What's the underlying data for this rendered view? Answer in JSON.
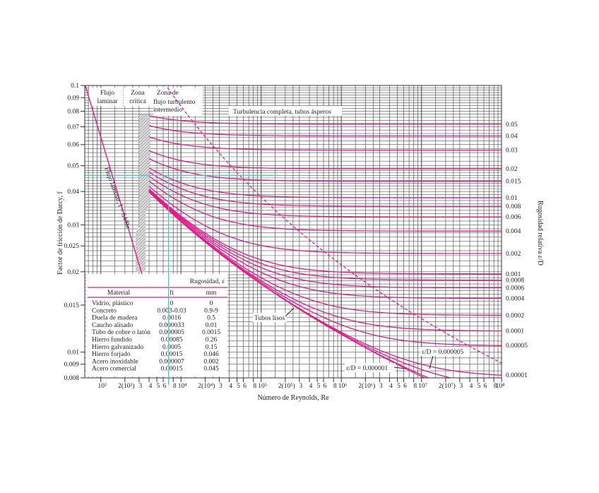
{
  "chart_data": {
    "type": "line",
    "xlabel": "Número de Reynolds, Re",
    "ylabel": "Factor de fricción de Darcy, f",
    "ylabel_right": "Rugosidad relativa ε/D",
    "x_scale": "log",
    "y_scale": "log",
    "xlim": [
      630,
      100000000
    ],
    "ylim": [
      0.008,
      0.1
    ],
    "grid": true,
    "x_tick_labels": [
      "10³",
      "2(10³)",
      "3",
      "4",
      "5",
      "6",
      "8",
      "10⁴",
      "2(10⁴)",
      "3",
      "4",
      "5",
      "6",
      "8",
      "10⁵",
      "2(10⁵)",
      "3",
      "4",
      "5",
      "6",
      "8",
      "10⁶",
      "2(10⁶)",
      "3",
      "4",
      "5",
      "6",
      "8",
      "10⁷",
      "2(10⁷)",
      "3",
      "4",
      "5",
      "6",
      "8",
      "10⁸"
    ],
    "x_tick_values": [
      1000,
      2000,
      3000,
      4000,
      5000,
      6000,
      8000,
      10000,
      20000,
      30000,
      40000,
      50000,
      60000,
      80000,
      100000,
      200000,
      300000,
      400000,
      500000,
      600000,
      800000,
      1000000,
      2000000,
      3000000,
      4000000,
      5000000,
      6000000,
      8000000,
      10000000,
      20000000,
      30000000,
      40000000,
      50000000,
      60000000,
      80000000,
      100000000
    ],
    "y_ticks": [
      {
        "label": "0.1",
        "value": 0.1
      },
      {
        "label": "0.09",
        "value": 0.09
      },
      {
        "label": "0.08",
        "value": 0.08
      },
      {
        "label": "0.07",
        "value": 0.07
      },
      {
        "label": "0.06",
        "value": 0.06
      },
      {
        "label": "0.05",
        "value": 0.05
      },
      {
        "label": "0.04",
        "value": 0.04
      },
      {
        "label": "0.03",
        "value": 0.03
      },
      {
        "label": "0.025",
        "value": 0.025
      },
      {
        "label": "0.02",
        "value": 0.02
      },
      {
        "label": "0.015",
        "value": 0.015
      },
      {
        "label": "0.01",
        "value": 0.01
      },
      {
        "label": "0.009",
        "value": 0.009
      },
      {
        "label": "0.008",
        "value": 0.008
      }
    ],
    "relative_roughness_labels": [
      "0.05",
      "0.04",
      "0.03",
      "0.02",
      "0.015",
      "0.01",
      "0.008",
      "0.006",
      "0.004",
      "0.002",
      "0.001",
      "0.0008",
      "0.0006",
      "0.0004",
      "0.0002",
      "0.0001",
      "0.00005",
      "0.00001"
    ],
    "relative_roughness_curves": [
      0.05,
      0.04,
      0.03,
      0.02,
      0.015,
      0.01,
      0.008,
      0.006,
      0.004,
      0.002,
      0.001,
      0.0008,
      0.0006,
      0.0004,
      0.0002,
      0.0001,
      5e-05,
      1e-05,
      5e-06,
      1e-06,
      0
    ],
    "turbulent_re_range": [
      4000,
      100000000
    ],
    "laminar": {
      "formula": "f = 64/Re",
      "re_range": [
        630,
        3400
      ]
    },
    "highlight": {
      "re": 7000,
      "f": 0.046,
      "color": "#3cc8c8"
    },
    "colors": {
      "curves": "#e8188c",
      "grid": "#555555",
      "highlight": "#3cc8c8"
    },
    "annotations": {
      "laminar_zone": "Flujo laminar",
      "critical_zone": "Zona crítica",
      "transition_zone": "Zona de flujo turbulento intermedio",
      "complete_turbulence": "Turbulencia completa, tubos ásperos",
      "laminar_line": "Flujo laminar, f = 64/Re",
      "smooth": "Tubos lisos",
      "ed_5e6": "ε/D = 0.000005",
      "ed_1e6": "ε/D = 0.000001"
    },
    "table": {
      "title": "Rugosidad, ε",
      "headers": [
        "Material",
        "ft",
        "mm"
      ],
      "rows": [
        [
          "Vidrio, plástico",
          "0",
          "0"
        ],
        [
          "Concreto",
          "0.003-0.03",
          "0.9-9"
        ],
        [
          "Duela de madera",
          "0.0016",
          "0.5"
        ],
        [
          "Caucho alisado",
          "0.000033",
          "0.01"
        ],
        [
          "Tubo de cobre o latón",
          "0.000005",
          "0.0015"
        ],
        [
          "Hierro fundido",
          "0.00085",
          "0.26"
        ],
        [
          "Hierro galvanizado",
          "0.0005",
          "0.15"
        ],
        [
          "Hierro forjado",
          "0.00015",
          "0.046"
        ],
        [
          "Acero inoxidable",
          "0.000007",
          "0.002"
        ],
        [
          "Acero comercial",
          "0.00015",
          "0.045"
        ]
      ]
    }
  }
}
